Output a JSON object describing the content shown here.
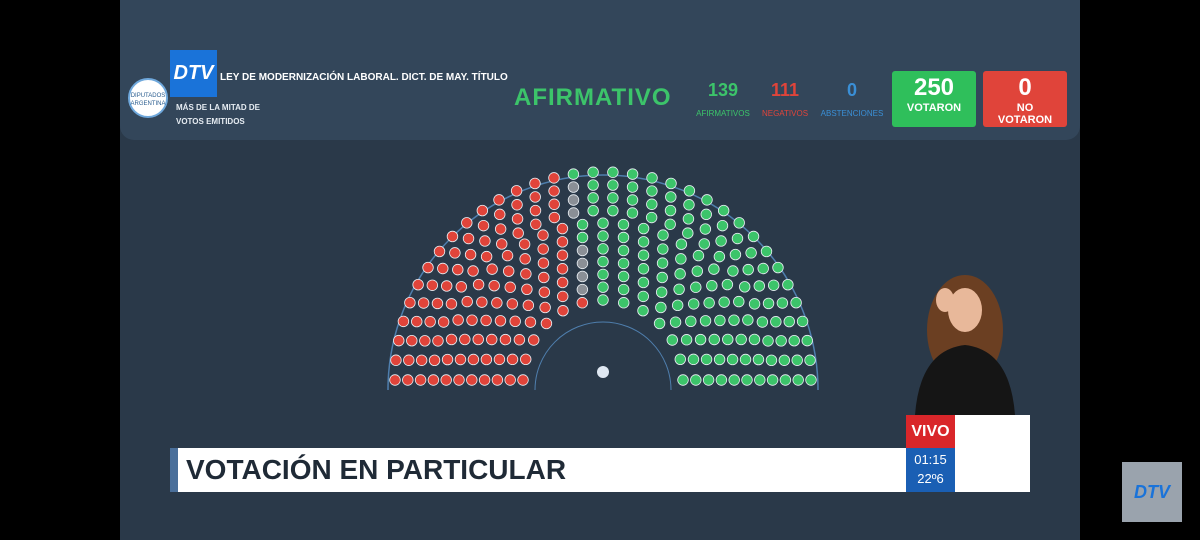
{
  "header": {
    "logo": "DTV",
    "institution": "DIPUTADOS ARGENTINA",
    "title": "LEY DE MODERNIZACIÓN LABORAL. DICT. DE MAY. TÍTULO",
    "rule": "MÁS DE LA MITAD DE VOTOS EMITIDOS",
    "result": "AFIRMATIVO",
    "result_color": "#3cc46a"
  },
  "tally": [
    {
      "value": 139,
      "label": "AFIRMATIVOS",
      "color": "#3cc46a"
    },
    {
      "value": 111,
      "label": "NEGATIVOS",
      "color": "#e0443a"
    },
    {
      "value": 0,
      "label": "ABSTENCIONES",
      "color": "#3a8fd6"
    }
  ],
  "totals": [
    {
      "value": 250,
      "label": "VOTARON",
      "color": "#2fbf5b"
    },
    {
      "value": 0,
      "label": "NO VOTARON",
      "color": "#e0443a"
    }
  ],
  "banner": {
    "title": "VOTACIÓN EN PARTICULAR",
    "live": "VIVO",
    "time": "01:15",
    "temperature": "22º6",
    "logo": "DTV"
  }
}
